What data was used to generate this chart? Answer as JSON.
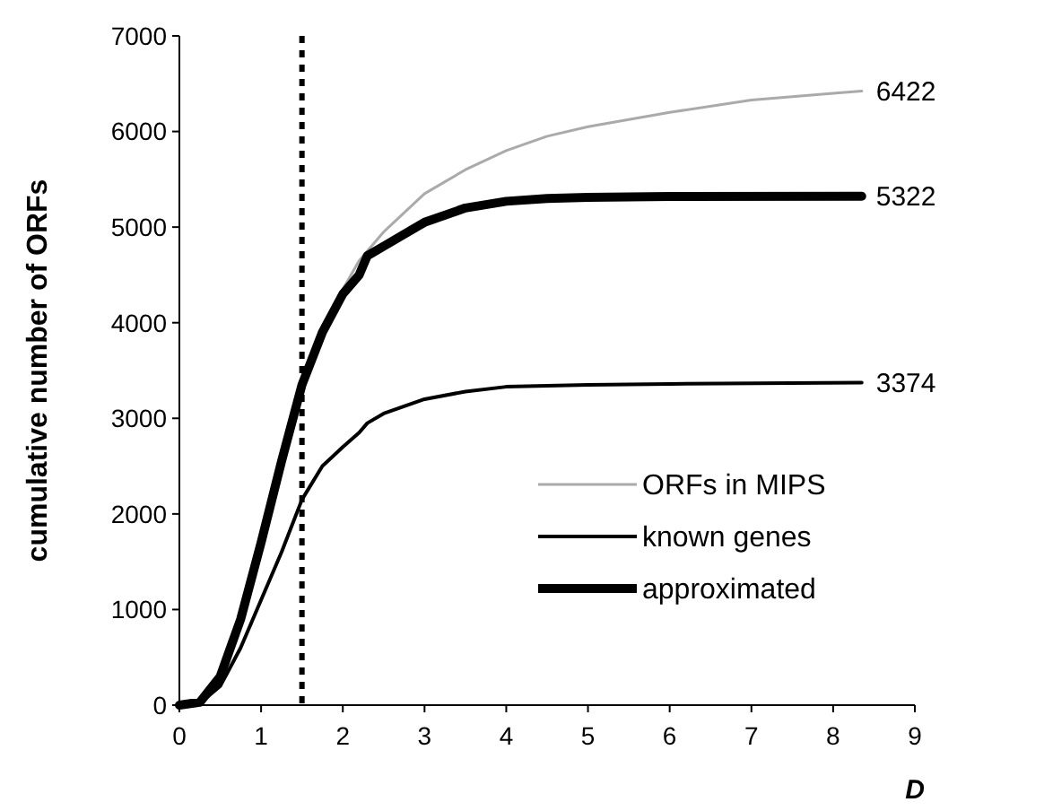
{
  "chart_data": {
    "type": "line",
    "xlabel": "D",
    "ylabel": "cumulative number of ORFs",
    "xlim": [
      0,
      9
    ],
    "xticks": [
      0,
      1,
      2,
      3,
      4,
      5,
      6,
      7,
      8,
      9
    ],
    "ylim": [
      0,
      7000
    ],
    "yticks": [
      0,
      1000,
      2000,
      3000,
      4000,
      5000,
      6000,
      7000
    ],
    "grid": false,
    "legend": "right",
    "marker": "none",
    "line_style": "solid",
    "series": [
      {
        "name": "ORFs in MIPS",
        "color": "#aaaaaa",
        "x": [
          0,
          0.25,
          0.5,
          0.75,
          1,
          1.25,
          1.5,
          1.75,
          2,
          2.2,
          2.5,
          3,
          3.5,
          4,
          4.5,
          5,
          6,
          7,
          8,
          8.35
        ],
        "values": [
          0,
          30,
          300,
          900,
          1700,
          2550,
          3350,
          3950,
          4350,
          4650,
          4950,
          5350,
          5600,
          5800,
          5950,
          6050,
          6200,
          6330,
          6400,
          6422
        ],
        "value_labels": [
          null,
          null,
          null,
          null,
          null,
          null,
          null,
          null,
          null,
          null,
          null,
          null,
          null,
          null,
          null,
          null,
          null,
          null,
          null,
          "6422"
        ]
      },
      {
        "name": "known genes",
        "color": "#000000",
        "x": [
          0,
          0.25,
          0.5,
          0.75,
          1,
          1.25,
          1.5,
          1.75,
          2,
          2.2,
          2.3,
          2.5,
          3,
          3.5,
          4,
          5,
          6,
          8.35
        ],
        "values": [
          0,
          20,
          200,
          600,
          1100,
          1600,
          2150,
          2500,
          2700,
          2850,
          2950,
          3050,
          3200,
          3280,
          3330,
          3350,
          3360,
          3374
        ],
        "value_labels": [
          null,
          null,
          null,
          null,
          null,
          null,
          null,
          null,
          null,
          null,
          null,
          null,
          null,
          null,
          null,
          null,
          null,
          "3374"
        ]
      },
      {
        "name": "approximated",
        "color": "#000000",
        "x": [
          0,
          0.25,
          0.5,
          0.75,
          1,
          1.25,
          1.5,
          1.75,
          2,
          2.2,
          2.3,
          2.5,
          3,
          3.5,
          4,
          4.5,
          5,
          6,
          8.35
        ],
        "values": [
          0,
          30,
          300,
          900,
          1700,
          2550,
          3350,
          3900,
          4300,
          4500,
          4700,
          4800,
          5050,
          5200,
          5270,
          5300,
          5310,
          5320,
          5322
        ],
        "value_labels": [
          null,
          null,
          null,
          null,
          null,
          null,
          null,
          null,
          null,
          null,
          null,
          null,
          null,
          null,
          null,
          null,
          null,
          null,
          "5322"
        ]
      }
    ],
    "ref_lines": [
      {
        "axis": "x",
        "value": 1.5,
        "color": "#000000",
        "line_style": "dotted"
      }
    ]
  }
}
